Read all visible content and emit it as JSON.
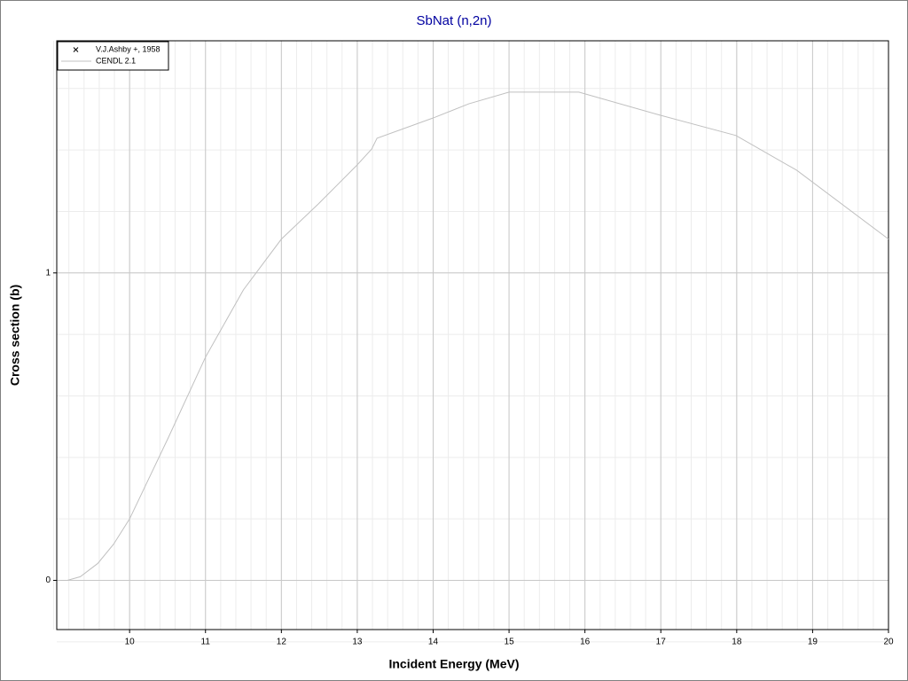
{
  "chart_data": {
    "type": "line",
    "title": "SbNat (n,2n)",
    "x_label": "Incident Energy (MeV)",
    "y_label": "Cross section (b)",
    "xlim": [
      9.04,
      20
    ],
    "ylim": [
      -0.16,
      1.755
    ],
    "xticks": [
      10,
      11,
      12,
      13,
      14,
      15,
      16,
      17,
      18,
      19,
      20
    ],
    "yticks": [
      0,
      1
    ],
    "grid": true,
    "legend": "top-left",
    "series": [
      {
        "name": "V.J.Ashby +, 1958",
        "marker": "x",
        "color": "#000000",
        "x": [],
        "values": []
      },
      {
        "name": "CENDL 2.1",
        "color": "#c0c0c0",
        "x": [
          9.09,
          9.18,
          9.35,
          9.58,
          9.79,
          10.0,
          10.51,
          11.0,
          11.5,
          12.0,
          12.49,
          12.99,
          13.19,
          13.26,
          14.0,
          14.47,
          15.0,
          15.92,
          16.99,
          17.99,
          18.79,
          20.0
        ],
        "values": [
          0,
          0,
          0.012,
          0.055,
          0.118,
          0.2,
          0.464,
          0.726,
          0.945,
          1.11,
          1.225,
          1.349,
          1.403,
          1.438,
          1.504,
          1.55,
          1.588,
          1.588,
          1.513,
          1.447,
          1.334,
          1.11
        ]
      }
    ]
  }
}
